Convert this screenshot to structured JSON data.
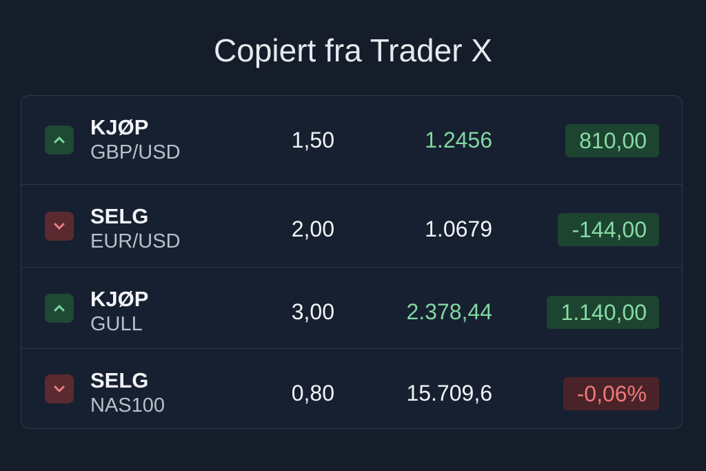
{
  "title": "Copiert fra Trader X",
  "trades": [
    {
      "action": "KJØP",
      "symbol": "GBP/USD",
      "amount": "1,50",
      "price": "1.2456",
      "pnl": "810,00"
    },
    {
      "action": "SELG",
      "symbol": "EUR/USD",
      "amount": "2,00",
      "price": "1.0679",
      "pnl": "-144,00"
    },
    {
      "action": "KJØP",
      "symbol": "GULL",
      "amount": "3,00",
      "price": "2.378,44",
      "pnl": "1.140,00"
    },
    {
      "action": "SELG",
      "symbol": "NAS100",
      "amount": "0,80",
      "price": "15.709,6",
      "pnl": "-0,06%"
    }
  ]
}
